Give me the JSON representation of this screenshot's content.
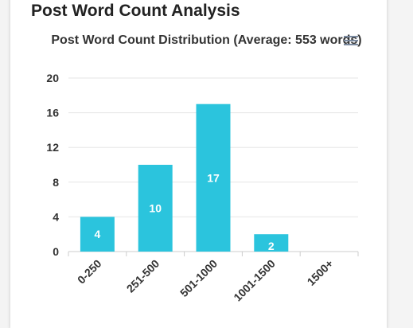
{
  "page": {
    "heading": "Post Word Count Analysis"
  },
  "icons": {
    "menu": "hamburger-menu-icon"
  },
  "colors": {
    "bar": "#2bc4dd",
    "grid": "#e6e6e6",
    "axis": "#cccccc",
    "text": "#333333"
  },
  "chart_data": {
    "type": "bar",
    "title": "Post Word Count Distribution (Average: 553 words)",
    "categories": [
      "0-250",
      "251-500",
      "501-1000",
      "1001-1500",
      "1500+"
    ],
    "values": [
      4,
      10,
      17,
      2,
      0
    ],
    "data_labels": [
      "4",
      "10",
      "17",
      "2",
      ""
    ],
    "ylim": [
      0,
      20
    ],
    "yticks": [
      0,
      4,
      8,
      12,
      16,
      20
    ],
    "xlabel": "",
    "ylabel": "",
    "grid": true,
    "legend": false
  }
}
